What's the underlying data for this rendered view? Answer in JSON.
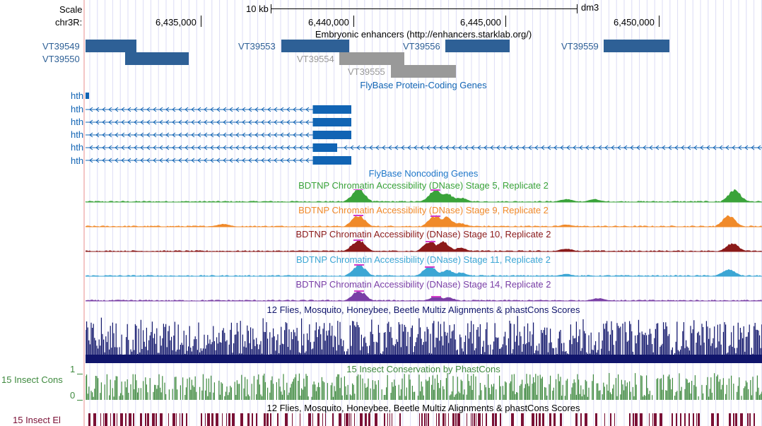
{
  "ruler": {
    "scale_label": "Scale",
    "chrom_label": "chr3R:",
    "scalebar_label": "10 kb",
    "assembly": "dm3",
    "positions": [
      "6,435,000",
      "6,440,000",
      "6,445,000",
      "6,450,000"
    ]
  },
  "tracks": {
    "enhancers": {
      "title": "Embryonic enhancers (http://enhancers.starklab.org/)",
      "blue_color": "#2e6096",
      "gray_color": "#999999",
      "items": [
        "VT39549",
        "VT39550",
        "VT39553",
        "VT39554",
        "VT39555",
        "VT39556",
        "VT39559"
      ]
    },
    "genes": {
      "title": "FlyBase Protein-Coding Genes",
      "color": "#1164b4",
      "rows": [
        "hth",
        "hth",
        "hth",
        "hth",
        "hth",
        "hth"
      ]
    },
    "noncoding": {
      "title": "FlyBase Noncoding Genes",
      "color": "#1f77c9"
    },
    "dnase": [
      {
        "title": "BDTNP Chromatin Accessibility (DNase) Stage 5, Replicate 2",
        "color": "#3aa33a"
      },
      {
        "title": "BDTNP Chromatin Accessibility (DNase) Stage 9, Replicate 2",
        "color": "#f08a2a"
      },
      {
        "title": "BDTNP Chromatin Accessibility (DNase) Stage 10, Replicate 2",
        "color": "#8b1a1a"
      },
      {
        "title": "BDTNP Chromatin Accessibility (DNase) Stage 11, Replicate 2",
        "color": "#3ca6d4"
      },
      {
        "title": "BDTNP Chromatin Accessibility (DNase) Stage 14, Replicate 2",
        "color": "#7a3fa6"
      }
    ],
    "multiz": {
      "title": "12 Flies, Mosquito, Honeybee, Beetle Multiz Alignments & phastCons Scores",
      "color": "#10156b"
    },
    "phastcons": {
      "title": "15 Insect Conservation by PhastCons",
      "left_label": "15 Insect Cons",
      "axis_top": "1",
      "axis_bottom": "0",
      "color": "#3f8a3f"
    },
    "elements": {
      "title": "12 Flies, Mosquito, Honeybee, Beetle Multiz Alignments & phastCons Scores",
      "left_label": "15 Insect El",
      "color": "#7a1035"
    }
  }
}
